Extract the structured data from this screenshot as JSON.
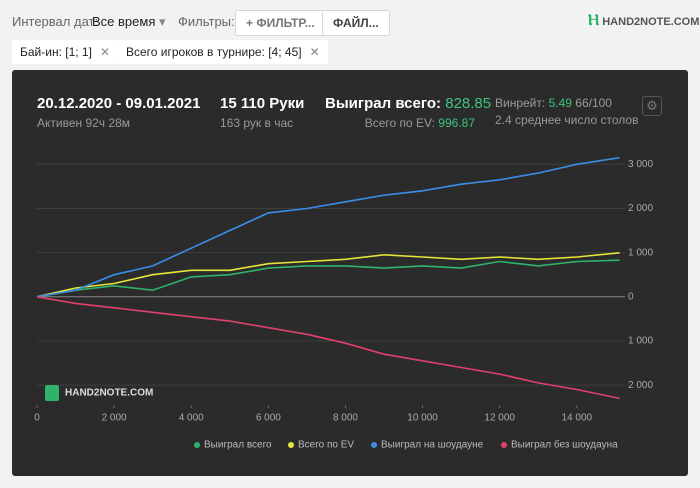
{
  "toolbar": {
    "date_label": "Интервал дат:",
    "date_value": "Все время",
    "filters_label": "Фильтры:",
    "filter_button": "ФИЛЬТР...",
    "file_button": "ФАЙЛ...",
    "logo": "HAND2NOTE.COM"
  },
  "filter_tags": [
    "Бай-ин: [1; 1]",
    "Всего игроков в турнире: [4; 45]"
  ],
  "stats": {
    "period": "20.12.2020 - 09.01.2021",
    "active": "Активен 92ч 28м",
    "hands": "15 110 Руки",
    "hands_per_hour": "163 рук в час",
    "won_label": "Выиграл всего:",
    "won_value": "828.85",
    "ev_label": "Всего по EV:",
    "ev_value": "996.87",
    "winrate_label": "Винрейт:",
    "winrate_value": "5.49",
    "winrate_unit": "66/100",
    "tables": "2.4 среднее число столов"
  },
  "chart_data": {
    "type": "line",
    "watermark": "HAND2NOTE.COM",
    "x": [
      0,
      1000,
      2000,
      3000,
      4000,
      5000,
      6000,
      7000,
      8000,
      9000,
      10000,
      11000,
      12000,
      13000,
      14000,
      15110
    ],
    "series": [
      {
        "name": "Выиграл всего",
        "color": "#2fb36a",
        "values": [
          0,
          150,
          250,
          150,
          450,
          500,
          650,
          700,
          700,
          650,
          700,
          650,
          800,
          700,
          800,
          829
        ]
      },
      {
        "name": "Всего по EV",
        "color": "#e8e43a",
        "values": [
          0,
          200,
          300,
          500,
          600,
          600,
          750,
          800,
          850,
          950,
          900,
          850,
          900,
          850,
          900,
          997
        ]
      },
      {
        "name": "Выиграл на шоудауне",
        "color": "#3a8ee6",
        "values": [
          0,
          150,
          500,
          700,
          1100,
          1500,
          1900,
          2000,
          2150,
          2300,
          2400,
          2550,
          2650,
          2800,
          3000,
          3150
        ]
      },
      {
        "name": "Выиграл без шоудауна",
        "color": "#e0406a",
        "values": [
          0,
          -150,
          -250,
          -350,
          -450,
          -550,
          -700,
          -850,
          -1050,
          -1300,
          -1450,
          -1600,
          -1750,
          -1950,
          -2100,
          -2300
        ]
      }
    ],
    "xlim": [
      0,
      15250
    ],
    "ylim": [
      -2450,
      3550
    ],
    "xticks": [
      0,
      {
        "value": 2000,
        "label": "2 000"
      },
      {
        "value": 4000,
        "label": "4 000"
      },
      {
        "value": 6000,
        "label": "6 000"
      },
      {
        "value": 8000,
        "label": "8 000"
      },
      {
        "value": 10000,
        "label": "10 000"
      },
      {
        "value": 12000,
        "label": "12 000"
      },
      {
        "value": 14000,
        "label": "14 000"
      }
    ],
    "yticks": [
      {
        "value": -2000,
        "label": "2 000"
      },
      {
        "value": -1000,
        "label": "1 000"
      },
      0,
      {
        "value": 1000,
        "label": "1 000"
      },
      {
        "value": 2000,
        "label": "2 000"
      },
      {
        "value": 3000,
        "label": "3 000"
      }
    ],
    "grid": true
  }
}
